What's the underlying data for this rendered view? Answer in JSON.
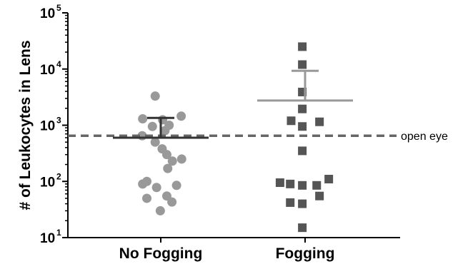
{
  "chart_data": {
    "type": "scatter",
    "ylabel": "# of Leukocytes in  Lens",
    "y_scale": "log",
    "ylim": [
      10,
      100000
    ],
    "y_ticks": [
      {
        "value": 10,
        "base": "10",
        "exp": "1"
      },
      {
        "value": 100,
        "base": "10",
        "exp": "2"
      },
      {
        "value": 1000,
        "base": "10",
        "exp": "3"
      },
      {
        "value": 10000,
        "base": "10",
        "exp": "4"
      },
      {
        "value": 100000,
        "base": "10",
        "exp": "5"
      }
    ],
    "categories": [
      "No Fogging",
      "Fogging"
    ],
    "grid": false,
    "series": [
      {
        "category": "No Fogging",
        "marker": "circle",
        "color": "#999999",
        "mean": 600,
        "error_upper": 1350,
        "error_lower": 600,
        "points": [
          {
            "y": 3300,
            "jitter": -0.6
          },
          {
            "y": 1300,
            "jitter": -1.95
          },
          {
            "y": 1250,
            "jitter": 0.2
          },
          {
            "y": 1450,
            "jitter": 2.2
          },
          {
            "y": 1000,
            "jitter": 0.9
          },
          {
            "y": 950,
            "jitter": -0.9
          },
          {
            "y": 800,
            "jitter": 0.45
          },
          {
            "y": 650,
            "jitter": -2.0
          },
          {
            "y": 500,
            "jitter": -0.6
          },
          {
            "y": 380,
            "jitter": 0.15
          },
          {
            "y": 300,
            "jitter": 0.65
          },
          {
            "y": 250,
            "jitter": 2.25
          },
          {
            "y": 230,
            "jitter": 1.25
          },
          {
            "y": 170,
            "jitter": 0.75
          },
          {
            "y": 100,
            "jitter": -1.5
          },
          {
            "y": 90,
            "jitter": -1.95
          },
          {
            "y": 85,
            "jitter": 1.7
          },
          {
            "y": 78,
            "jitter": -0.45
          },
          {
            "y": 55,
            "jitter": 0.65
          },
          {
            "y": 50,
            "jitter": -1.5
          },
          {
            "y": 43,
            "jitter": 1.2
          },
          {
            "y": 30,
            "jitter": -0.05
          }
        ]
      },
      {
        "category": "Fogging",
        "marker": "square",
        "color": "#555555",
        "mean": 2750,
        "error_upper": 9300,
        "error_lower": 2750,
        "points": [
          {
            "y": 25000,
            "jitter": -0.3
          },
          {
            "y": 12000,
            "jitter": -0.3
          },
          {
            "y": 3900,
            "jitter": -0.3
          },
          {
            "y": 1950,
            "jitter": -0.3
          },
          {
            "y": 1200,
            "jitter": -1.5
          },
          {
            "y": 1150,
            "jitter": 1.55
          },
          {
            "y": 950,
            "jitter": -0.3
          },
          {
            "y": 350,
            "jitter": -0.3
          },
          {
            "y": 110,
            "jitter": 2.55
          },
          {
            "y": 95,
            "jitter": -2.7
          },
          {
            "y": 90,
            "jitter": -1.6
          },
          {
            "y": 85,
            "jitter": -0.3
          },
          {
            "y": 85,
            "jitter": 1.25
          },
          {
            "y": 55,
            "jitter": 1.55
          },
          {
            "y": 42,
            "jitter": -1.6
          },
          {
            "y": 40,
            "jitter": -0.3
          },
          {
            "y": 15,
            "jitter": -0.3
          }
        ]
      }
    ],
    "reference_line": {
      "value": 650,
      "label": "open eye",
      "style": "dashed",
      "color": "#666666"
    }
  }
}
